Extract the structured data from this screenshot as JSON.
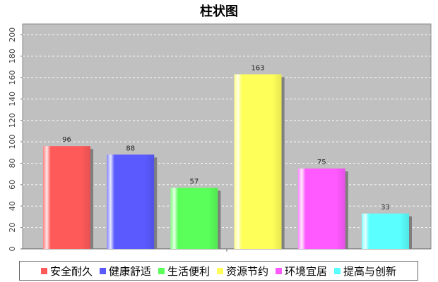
{
  "chart_data": {
    "type": "bar",
    "title": "柱状图",
    "categories": [
      "安全耐久",
      "健康舒适",
      "生活便利",
      "资源节约",
      "环境宜居",
      "提高与创新"
    ],
    "values": [
      96,
      88,
      57,
      163,
      75,
      33
    ],
    "colors": [
      "#ff5a5a",
      "#5a5aff",
      "#5aff5a",
      "#ffff5a",
      "#ff5aff",
      "#5affff"
    ],
    "ylim": [
      0,
      210
    ],
    "yticks": [
      0,
      20,
      40,
      60,
      80,
      100,
      120,
      140,
      160,
      180,
      200
    ],
    "grid": true,
    "legend_position": "bottom",
    "plot_background": "#c0c0c0"
  }
}
